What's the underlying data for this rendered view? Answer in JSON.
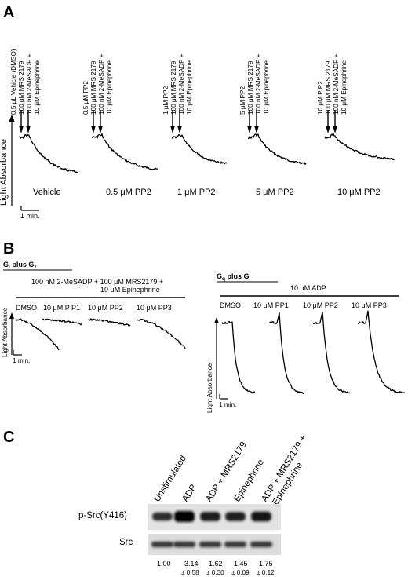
{
  "panels": {
    "A": {
      "letter": "A",
      "y_axis_label": "Light Absorbance",
      "scale_label": "1 min.",
      "groups": [
        {
          "treatments": [
            "0.5 μL Vehicle (DMSO)",
            "100 μM MRS 2179",
            "100 nM 2-MeSADP +",
            "10 μM Epinephrine"
          ],
          "name": "Vehicle"
        },
        {
          "treatments": [
            "0.5 μM PP2",
            "100 μM MRS 2179",
            "100 nM 2-MeSADP +",
            "10 μM Epinephrine"
          ],
          "name": "0.5 μM PP2"
        },
        {
          "treatments": [
            "1 μM PP2",
            "100 μM MRS 2179",
            "100 nM 2-MeSADP +",
            "10 μM Epinephrine"
          ],
          "name": "1 μM PP2"
        },
        {
          "treatments": [
            "5 μM PP2",
            "100 μM MRS 2179",
            "100 nM 2-MeSADP +",
            "10 μM Epinephrine"
          ],
          "name": "5 μM PP2"
        },
        {
          "treatments": [
            "10 μM P P2",
            "100 μM MRS 2179",
            "100 nM 2-MeSADP +",
            "10 μM Epinephrine"
          ],
          "name": "10 μM PP2"
        }
      ]
    },
    "B": {
      "letter": "B",
      "left": {
        "title_main": "G",
        "title_sub1": "i",
        "title_mid": " plus G",
        "title_sub2": "z",
        "header_line1": "100 nM 2-MeSADP  + 100 μM MRS2179  +",
        "header_line2": "10 μM Epinephrine",
        "traces": [
          "DMSO",
          "10 μM P P1",
          "10 μM PP2",
          "10 μM PP3"
        ],
        "y_axis_label": "Light Absorbance",
        "scale_label": "1 min."
      },
      "right": {
        "title_main": "G",
        "title_sub1": "q",
        "title_mid": " plus G",
        "title_sub2": "i",
        "header_line1": "10 μM ADP",
        "traces": [
          "DMSO",
          "10 μM PP1",
          "10 μM PP2",
          "10 μM PP3"
        ],
        "y_axis_label": "Light Absorbance",
        "scale_label": "1 min."
      }
    },
    "C": {
      "letter": "C",
      "lanes": [
        "Unstimulated",
        "ADP",
        "ADP + MRS2179",
        "Epinephrine",
        "ADP + MRS2179 +",
        "Epinephrine"
      ],
      "row_labels": [
        "p-Src(Y416)",
        "Src"
      ],
      "means": [
        "1.00",
        "3.14",
        "1.62",
        "1.45",
        "1.75"
      ],
      "sems": [
        "",
        "± 0.58",
        "± 0.30",
        "± 0.09",
        "± 0.12"
      ]
    }
  }
}
